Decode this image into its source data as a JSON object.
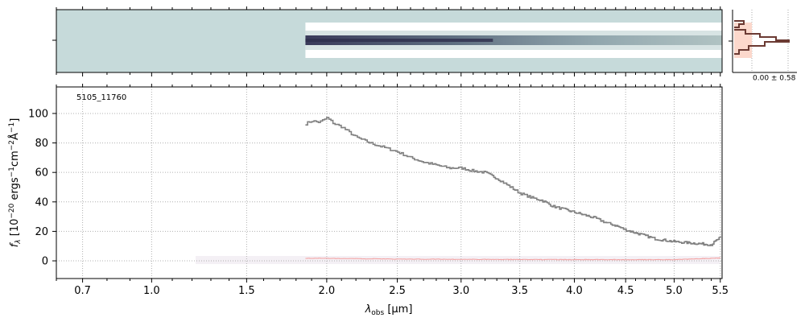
{
  "chart_data": [
    {
      "type": "heatmap",
      "panel": "2d-spectrum",
      "description_colormap": "bone_r",
      "xlim": [
        0.6,
        5.52
      ],
      "x_scale": "sqrt",
      "trace_start_x": 1.86,
      "colors": {
        "background": "#c6dada",
        "trace_core": "#3a3a5a",
        "trace_halo": "#ffffff"
      }
    },
    {
      "type": "line",
      "panel": "1d-spectrum",
      "annotation": "5105_11760",
      "xlabel": "λobs [μm]",
      "ylabel": "fλ [10⁻²⁰ ergs⁻¹cm⁻²Å⁻¹]",
      "x_scale": "sqrt",
      "xlim": [
        0.6,
        5.52
      ],
      "ylim": [
        -12,
        118
      ],
      "xticks": [
        0.7,
        1.0,
        1.5,
        2.0,
        2.5,
        3.0,
        3.5,
        4.0,
        4.5,
        5.0,
        5.5
      ],
      "xtick_labels": [
        "0.7",
        "1.0",
        "1.5",
        "2.0",
        "2.5",
        "3.0",
        "3.5",
        "4.0",
        "4.5",
        "5.0",
        "5.5"
      ],
      "yticks": [
        0,
        20,
        40,
        60,
        80,
        100
      ],
      "ytick_labels": [
        "0",
        "20",
        "40",
        "60",
        "80",
        "100"
      ],
      "grid": true,
      "series": [
        {
          "style": "steps",
          "color": "#808080",
          "x": [
            1.86,
            1.9,
            1.95,
            2.0,
            2.05,
            2.1,
            2.2,
            2.3,
            2.4,
            2.5,
            2.6,
            2.7,
            2.8,
            2.9,
            3.0,
            3.1,
            3.2,
            3.3,
            3.4,
            3.5,
            3.6,
            3.7,
            3.8,
            3.9,
            4.0,
            4.1,
            4.2,
            4.3,
            4.4,
            4.5,
            4.6,
            4.7,
            4.8,
            4.9,
            5.0,
            5.1,
            5.2,
            5.3,
            5.4,
            5.5
          ],
          "y": [
            93,
            95,
            94,
            97,
            93,
            91,
            84,
            80,
            77,
            74,
            70,
            67,
            65,
            63,
            63,
            61,
            60,
            56,
            51,
            46,
            43,
            41,
            37,
            35,
            33,
            31,
            29,
            26,
            24,
            21,
            19,
            17,
            15,
            14,
            13,
            12.5,
            12,
            11.5,
            11,
            16
          ]
        },
        {
          "style": "steps",
          "color": "#f4a0a0",
          "x": [
            1.86,
            2.5,
            3.0,
            3.5,
            4.0,
            4.5,
            5.0,
            5.5
          ],
          "y": [
            1.8,
            1.2,
            1.0,
            0.9,
            0.8,
            0.8,
            0.8,
            2.0
          ]
        }
      ]
    },
    {
      "type": "bar",
      "panel": "profile",
      "annotation": "0.00 ± 0.58",
      "colors": {
        "profile": "#6b3a33",
        "fill": "#fcd8cc"
      }
    }
  ]
}
